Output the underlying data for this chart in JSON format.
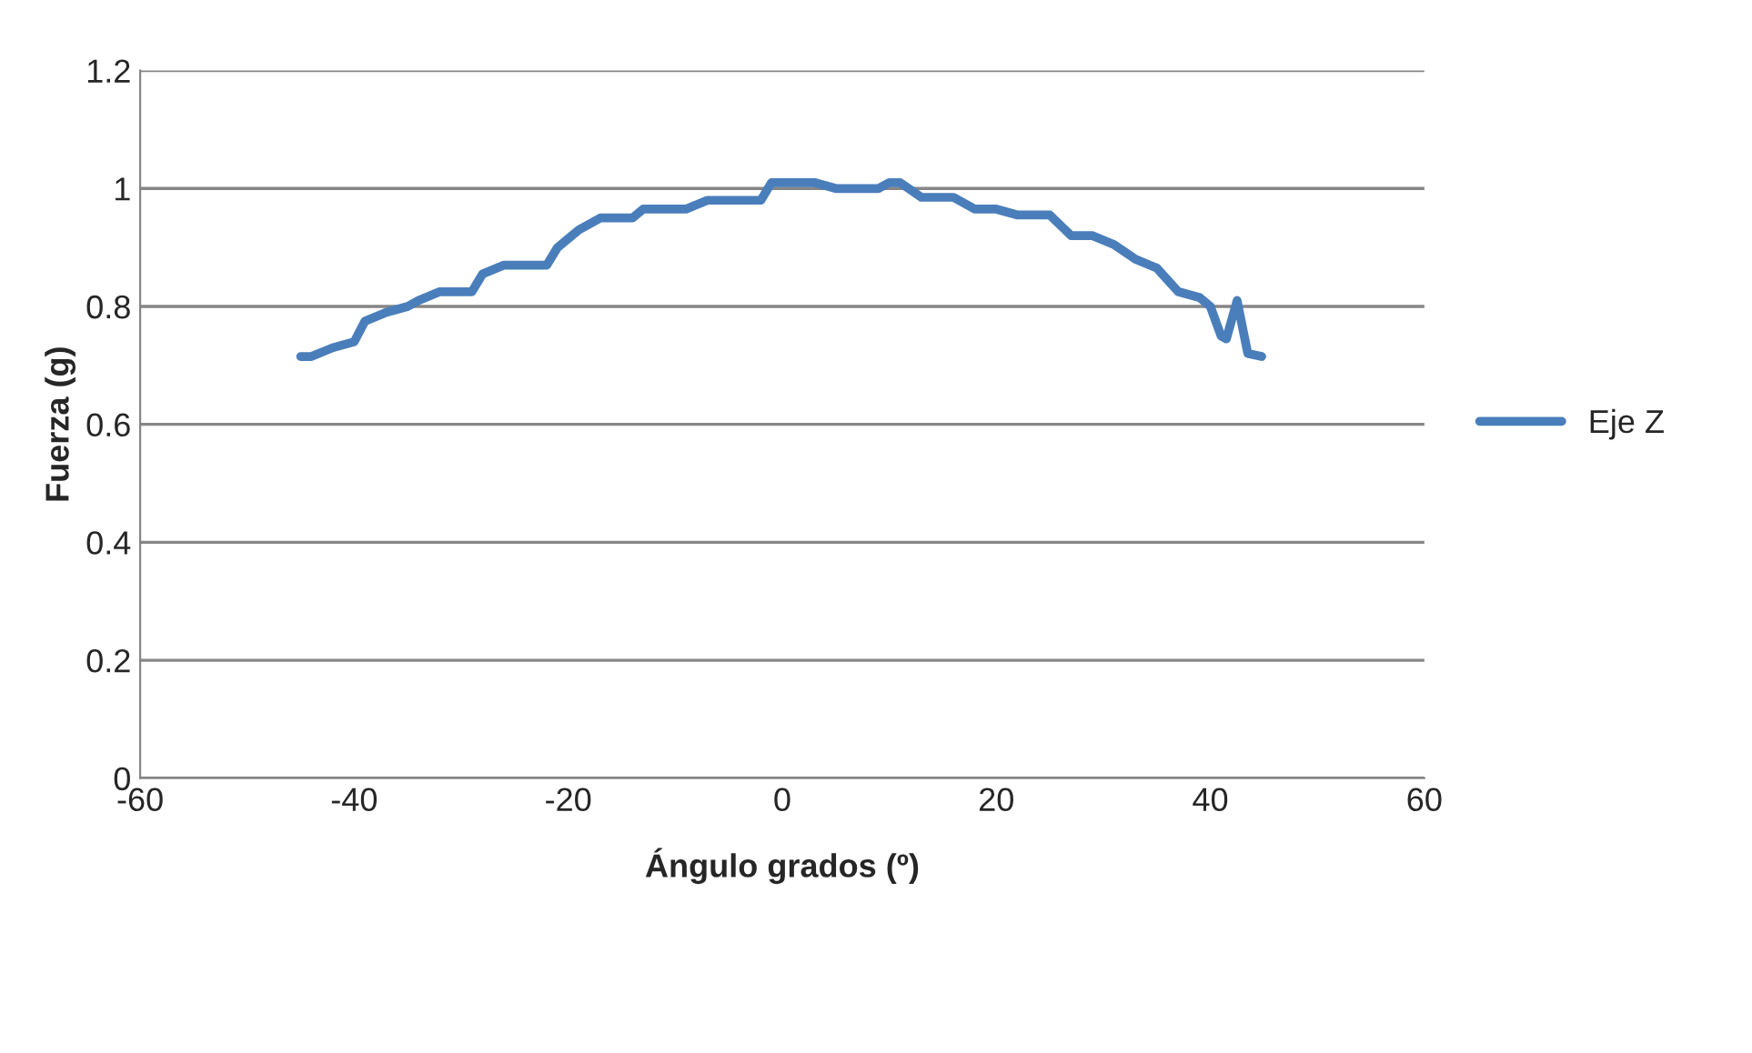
{
  "chart_data": {
    "type": "line",
    "xlabel": "Ángulo grados (º)",
    "ylabel": "Fuerza (g)",
    "xlim": [
      -60,
      60
    ],
    "xticks": [
      -60,
      -40,
      -20,
      0,
      20,
      40,
      60
    ],
    "ylim": [
      0,
      1.2
    ],
    "yticks": [
      0,
      0.2,
      0.4,
      0.6,
      0.8,
      1,
      1.2
    ],
    "grid": "y",
    "legend": "right",
    "marker": "none",
    "line_style": "solid",
    "series": [
      {
        "name": "Eje Z",
        "color": "#4a7ebb",
        "x": [
          -45,
          -44,
          -42,
          -40,
          -39,
          -37,
          -35,
          -34,
          -32,
          -29,
          -28,
          -26,
          -22,
          -21,
          -19,
          -17,
          -14,
          -13,
          -9,
          -7,
          -2,
          -1,
          3,
          5,
          9,
          10,
          11,
          13,
          16,
          18,
          20,
          22,
          25,
          27,
          29,
          31,
          33,
          35,
          37,
          39,
          40,
          41,
          41.5,
          42.5,
          43.5,
          44.8
        ],
        "values": [
          0.715,
          0.715,
          0.73,
          0.74,
          0.775,
          0.79,
          0.8,
          0.81,
          0.825,
          0.825,
          0.855,
          0.87,
          0.87,
          0.9,
          0.93,
          0.95,
          0.95,
          0.965,
          0.965,
          0.98,
          0.98,
          1.01,
          1.01,
          1.0,
          1.0,
          1.01,
          1.01,
          0.985,
          0.985,
          0.965,
          0.965,
          0.955,
          0.955,
          0.92,
          0.92,
          0.905,
          0.88,
          0.865,
          0.825,
          0.815,
          0.8,
          0.75,
          0.745,
          0.81,
          0.72,
          0.715
        ]
      }
    ]
  }
}
